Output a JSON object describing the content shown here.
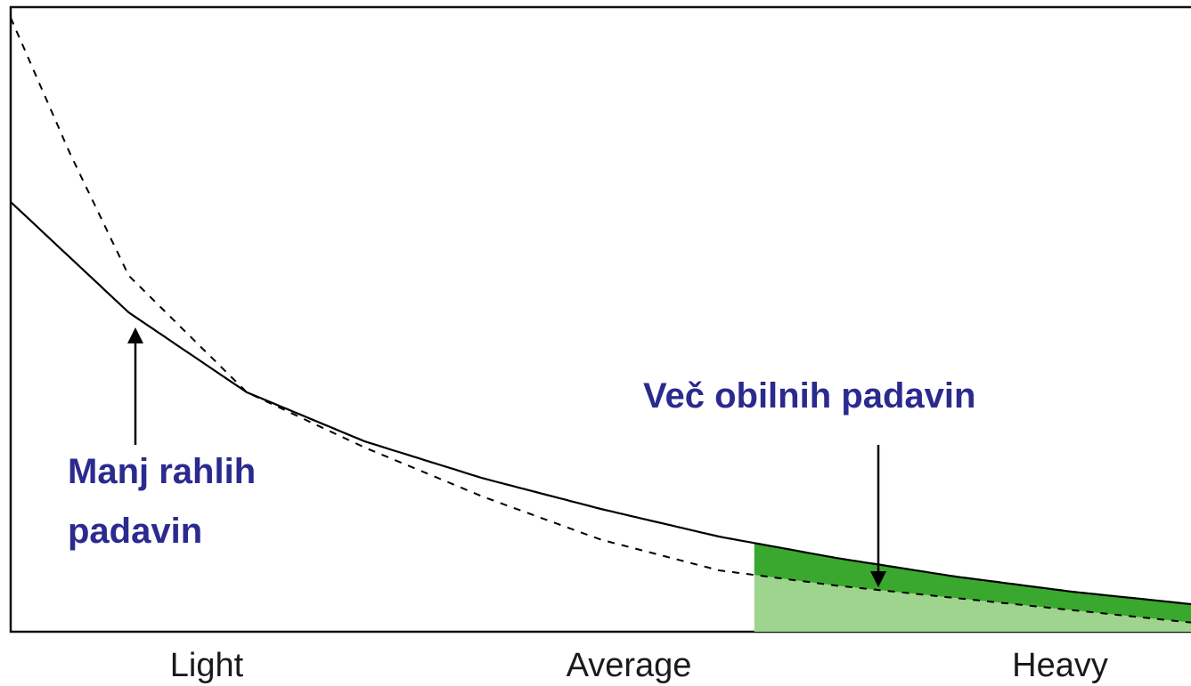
{
  "chart_data": {
    "type": "line",
    "xlabel": "",
    "ylabel": "",
    "x_tick_labels": [
      "Light",
      "Average",
      "Heavy"
    ],
    "series": [
      {
        "style": "solid",
        "color": "#000000",
        "x": [
          0,
          0.1,
          0.2,
          0.3,
          0.4,
          0.5,
          0.6,
          0.7,
          0.8,
          0.9,
          1.0
        ],
        "y": [
          0.7,
          0.52,
          0.39,
          0.31,
          0.25,
          0.2,
          0.155,
          0.12,
          0.09,
          0.065,
          0.045
        ]
      },
      {
        "style": "dashed",
        "color": "#000000",
        "x": [
          0,
          0.05,
          0.1,
          0.2,
          0.3,
          0.4,
          0.5,
          0.6,
          0.7,
          0.8,
          0.9,
          1.0
        ],
        "y": [
          1.0,
          0.78,
          0.58,
          0.39,
          0.3,
          0.22,
          0.15,
          0.1,
          0.075,
          0.055,
          0.035,
          0.015
        ]
      }
    ],
    "shaded_region": {
      "x_start": 0.63,
      "x_end": 1.0,
      "dark_color": "#3aa72e",
      "light_color": "#9fd48e"
    },
    "annotations": [
      {
        "text_lines": [
          "Manj rahlih",
          "padavin"
        ]
      },
      {
        "text_lines": [
          "Več obilnih padavin"
        ]
      }
    ]
  }
}
